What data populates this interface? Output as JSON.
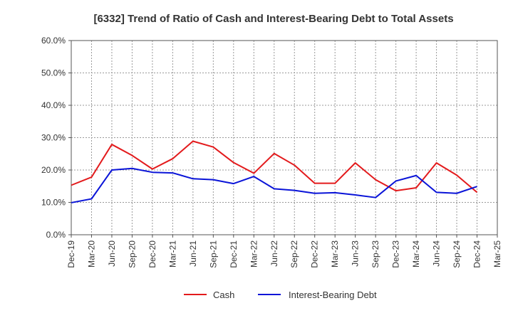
{
  "chart_data": {
    "type": "line",
    "title": "[6332]  Trend of Ratio of Cash and Interest-Bearing Debt to Total Assets",
    "xlabel": "",
    "ylabel": "",
    "x_ticks": [
      "Dec-19",
      "Mar-20",
      "Jun-20",
      "Sep-20",
      "Dec-20",
      "Mar-21",
      "Jun-21",
      "Sep-21",
      "Dec-21",
      "Mar-22",
      "Jun-22",
      "Sep-22",
      "Dec-22",
      "Mar-23",
      "Jun-23",
      "Sep-23",
      "Dec-23",
      "Mar-24",
      "Jun-24",
      "Sep-24",
      "Dec-24",
      "Mar-25"
    ],
    "categories": [
      "Dec-19",
      "Mar-20",
      "Jun-20",
      "Sep-20",
      "Dec-20",
      "Mar-21",
      "Jun-21",
      "Sep-21",
      "Dec-21",
      "Mar-22",
      "Jun-22",
      "Sep-22",
      "Dec-22",
      "Mar-23",
      "Jun-23",
      "Sep-23",
      "Dec-23",
      "Mar-24",
      "Jun-24",
      "Sep-24",
      "Dec-24"
    ],
    "y_ticks": [
      "0.0%",
      "10.0%",
      "20.0%",
      "30.0%",
      "40.0%",
      "50.0%",
      "60.0%"
    ],
    "ylim": [
      0,
      60
    ],
    "grid": true,
    "legend_position": "bottom",
    "series": [
      {
        "name": "Cash",
        "color": "#e31a1c",
        "values": [
          15.3,
          17.8,
          27.9,
          24.5,
          20.3,
          23.5,
          28.9,
          27.1,
          22.3,
          19.0,
          25.1,
          21.5,
          15.9,
          15.9,
          22.2,
          17.0,
          13.6,
          14.5,
          22.2,
          18.4,
          13.1
        ]
      },
      {
        "name": "Interest-Bearing Debt",
        "color": "#0a14d8",
        "values": [
          9.9,
          11.1,
          20.0,
          20.5,
          19.3,
          19.1,
          17.3,
          17.0,
          15.8,
          18.0,
          14.2,
          13.7,
          12.8,
          13.0,
          12.3,
          11.5,
          16.6,
          18.3,
          13.1,
          12.8,
          14.9
        ]
      }
    ]
  }
}
